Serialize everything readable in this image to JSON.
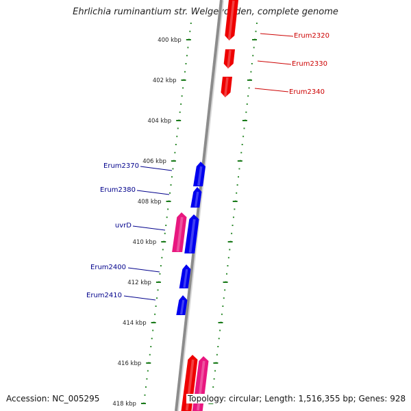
{
  "title": "Ehrlichia ruminantium str. Welgevonden, complete genome",
  "footer": {
    "accession": "Accession: NC_005295",
    "summary": "Topology: circular; Length: 1,516,355 bp; Genes: 928"
  },
  "colors": {
    "backbone": "#8c8c8c",
    "tick_major": "#1a7a1a",
    "tick_minor": "#2e8b2e",
    "forward_gene": "#0000ee",
    "reverse_gene": "#ee0000",
    "forward_cds_pink": "#e8177f",
    "label_forward": "#00008b",
    "label_reverse": "#cc0000"
  },
  "scale": {
    "unit": "kbp",
    "labels": [
      "400 kbp",
      "402 kbp",
      "404 kbp",
      "406 kbp",
      "408 kbp",
      "410 kbp",
      "412 kbp",
      "414 kbp",
      "416 kbp",
      "418 kbp"
    ]
  },
  "genes": [
    {
      "name": "Erum2320",
      "strand": "reverse"
    },
    {
      "name": "Erum2330",
      "strand": "reverse"
    },
    {
      "name": "Erum2340",
      "strand": "reverse"
    },
    {
      "name": "Erum2370",
      "strand": "forward"
    },
    {
      "name": "Erum2380",
      "strand": "forward"
    },
    {
      "name": "uvrD",
      "strand": "forward"
    },
    {
      "name": "Erum2400",
      "strand": "forward"
    },
    {
      "name": "Erum2410",
      "strand": "forward"
    }
  ]
}
